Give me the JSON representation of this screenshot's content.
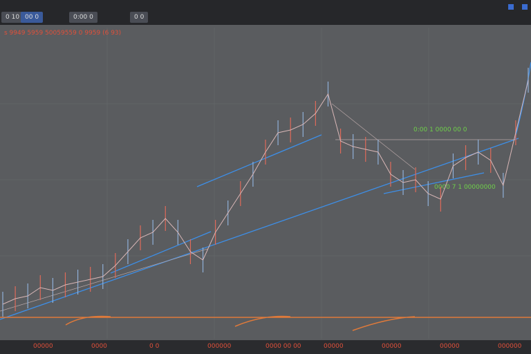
{
  "toolbar": {
    "buttons": [
      "0 10",
      "00 0",
      "0:00 0",
      "0 0"
    ]
  },
  "header": {
    "title": "s 9949 5959 50059559 0 9959 (6 93)"
  },
  "annotations": [
    "0:00 1 0000 00 0",
    "0000 7 1 00000000"
  ],
  "footer": {
    "labels": [
      "00000",
      "0000",
      "0 0",
      "000000",
      "0000 00 00",
      "00000",
      "00000",
      "00000",
      "000000"
    ]
  },
  "chart_data": {
    "type": "line",
    "color": "#d9b7b7",
    "values": [
      5,
      7,
      8,
      11,
      10,
      12,
      13,
      14,
      15,
      19,
      24,
      29,
      31,
      36,
      31,
      24,
      21,
      31,
      38,
      45,
      52,
      60,
      67,
      68,
      70,
      74,
      81,
      64,
      62,
      61,
      60,
      52,
      49,
      50,
      45,
      43,
      55,
      58,
      60,
      57,
      48,
      67,
      86
    ],
    "ylim": [
      0,
      100
    ]
  }
}
